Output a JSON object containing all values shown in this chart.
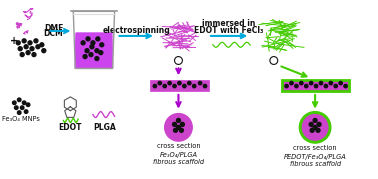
{
  "bg_color": "#ffffff",
  "magenta": "#cc44cc",
  "purple": "#aa00cc",
  "green": "#44cc00",
  "cyan_arrow": "#00aadd",
  "black": "#111111",
  "beaker_liquid": "#cc44ee",
  "beaker_glass": "#cccccc",
  "title_label1a": "Fe₃O₄/PLGA",
  "title_label1b": "fibrous scaffold",
  "title_label2a": "PEDOT/Fe₃O₄/PLGA",
  "title_label2b": "fibrous scaffold",
  "label_fe3o4": "Fe₃O₄ MNPs",
  "label_edot": "EDOT",
  "label_plga": "PLGA",
  "label_dmf": "DMF",
  "label_dcm": "DCM",
  "label_electrospinning": "electrospinning",
  "label_immersed": "immersed in",
  "label_edot_fecl": "EDOT with FeCl₃",
  "label_cross": "cross section",
  "figsize": [
    3.78,
    1.79
  ],
  "dpi": 100
}
